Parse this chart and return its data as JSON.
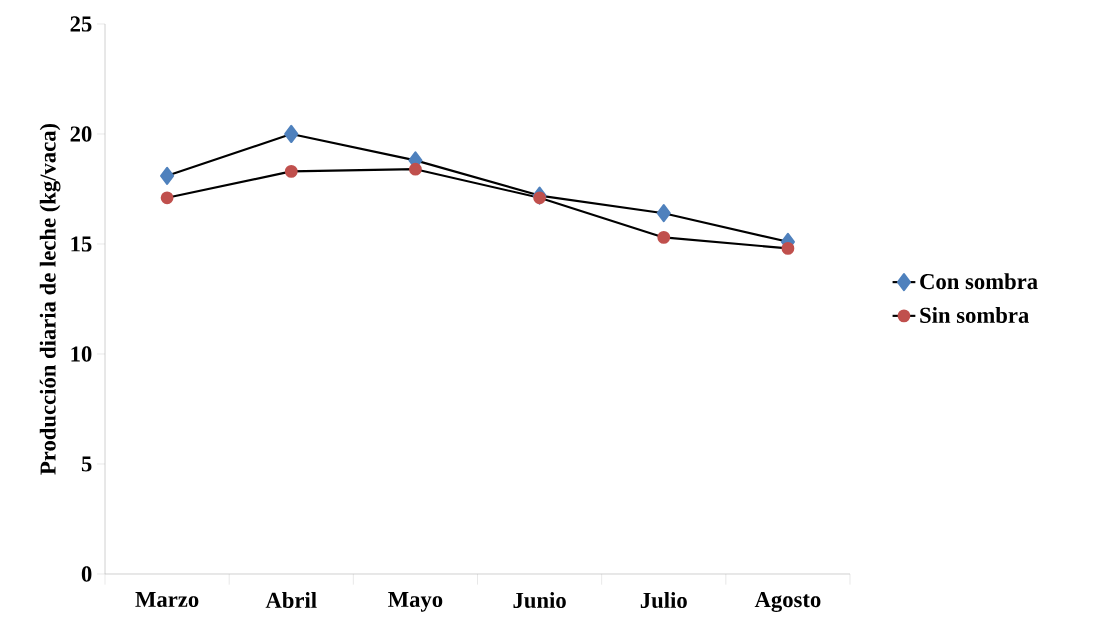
{
  "chart_data": {
    "type": "line",
    "ylabel": "Producción diaria de leche (kg/vaca)",
    "categories": [
      "Marzo",
      "Abril",
      "Mayo",
      "Junio",
      "Julio",
      "Agosto"
    ],
    "series": [
      {
        "name": "Con sombra",
        "color": "#4f81bd",
        "marker": "diamond",
        "values": [
          18.1,
          20.0,
          18.8,
          17.2,
          16.4,
          15.1
        ]
      },
      {
        "name": "Sin sombra",
        "color": "#c0504d",
        "marker": "circle",
        "values": [
          17.1,
          18.3,
          18.4,
          17.1,
          15.3,
          14.8
        ]
      }
    ],
    "ylim": [
      0,
      25
    ],
    "yticks": [
      0,
      5,
      10,
      15,
      20,
      25
    ],
    "grid": false,
    "legend": "right",
    "line_style": "solid"
  }
}
